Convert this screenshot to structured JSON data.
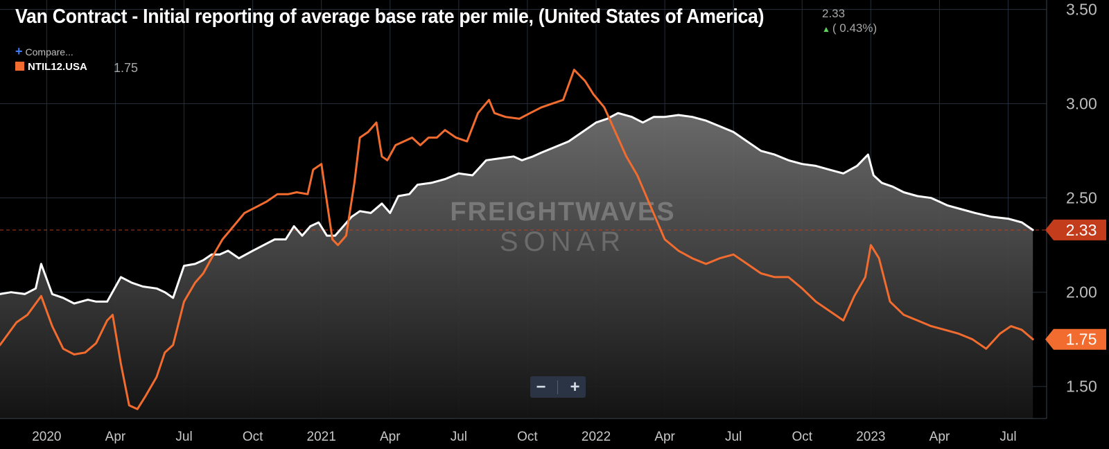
{
  "header": {
    "title": "Van Contract - Initial reporting of average base rate per mile, (United States of America)",
    "current_value": "2.33",
    "change": "( 0.43%)",
    "change_direction_icon": "arrow-up-icon"
  },
  "compare_label": "Compare...",
  "legend": {
    "symbol": "NTIL12.USA",
    "value": "1.75",
    "color": "#f26c2f"
  },
  "zoom": {
    "minus": "−",
    "plus": "+"
  },
  "colors": {
    "primary_line": "#ffffff",
    "secondary_line": "#f26c2f",
    "last_badge": "#c33c1c",
    "secondary_badge": "#f26c2f"
  },
  "chart_data": {
    "type": "line",
    "title": "Van Contract - Initial reporting of average base rate per mile, (United States of America)",
    "xlabel": "",
    "ylabel": "",
    "ylim": [
      1.33,
      3.55
    ],
    "xlim": [
      2019.83,
      2023.64
    ],
    "x_ticks": [
      {
        "x": 2020.0,
        "label": "2020"
      },
      {
        "x": 2020.25,
        "label": "Apr"
      },
      {
        "x": 2020.5,
        "label": "Jul"
      },
      {
        "x": 2020.75,
        "label": "Oct"
      },
      {
        "x": 2021.0,
        "label": "2021"
      },
      {
        "x": 2021.25,
        "label": "Apr"
      },
      {
        "x": 2021.5,
        "label": "Jul"
      },
      {
        "x": 2021.75,
        "label": "Oct"
      },
      {
        "x": 2022.0,
        "label": "2022"
      },
      {
        "x": 2022.25,
        "label": "Apr"
      },
      {
        "x": 2022.5,
        "label": "Jul"
      },
      {
        "x": 2022.75,
        "label": "Oct"
      },
      {
        "x": 2023.0,
        "label": "2023"
      },
      {
        "x": 2023.25,
        "label": "Apr"
      },
      {
        "x": 2023.5,
        "label": "Jul"
      }
    ],
    "y_ticks": [
      "1.50",
      "2.00",
      "2.50",
      "3.00",
      "3.50"
    ],
    "grid": true,
    "reference_line": 2.33,
    "series": [
      {
        "name": "Van Contract initial report (USA)",
        "color": "#ffffff",
        "area_fill": true,
        "last_label": "2.33",
        "x": [
          2019.83,
          2019.87,
          2019.92,
          2019.96,
          2019.98,
          2020.02,
          2020.06,
          2020.1,
          2020.15,
          2020.18,
          2020.22,
          2020.27,
          2020.31,
          2020.35,
          2020.4,
          2020.43,
          2020.46,
          2020.5,
          2020.54,
          2020.57,
          2020.6,
          2020.63,
          2020.66,
          2020.7,
          2020.75,
          2020.79,
          2020.83,
          2020.87,
          2020.9,
          2020.93,
          2020.96,
          2020.99,
          2021.02,
          2021.05,
          2021.08,
          2021.11,
          2021.14,
          2021.18,
          2021.22,
          2021.25,
          2021.28,
          2021.32,
          2021.35,
          2021.4,
          2021.45,
          2021.5,
          2021.55,
          2021.6,
          2021.65,
          2021.7,
          2021.73,
          2021.77,
          2021.8,
          2021.85,
          2021.9,
          2021.95,
          2022.0,
          2022.04,
          2022.08,
          2022.13,
          2022.17,
          2022.21,
          2022.25,
          2022.3,
          2022.35,
          2022.4,
          2022.45,
          2022.5,
          2022.55,
          2022.6,
          2022.65,
          2022.7,
          2022.75,
          2022.8,
          2022.85,
          2022.9,
          2022.95,
          2022.99,
          2023.01,
          2023.04,
          2023.08,
          2023.12,
          2023.17,
          2023.22,
          2023.25,
          2023.28,
          2023.33,
          2023.38,
          2023.44,
          2023.5,
          2023.55,
          2023.57,
          2023.59
        ],
        "values": [
          1.99,
          2.0,
          1.99,
          2.02,
          2.15,
          1.99,
          1.97,
          1.94,
          1.96,
          1.95,
          1.95,
          2.08,
          2.05,
          2.03,
          2.02,
          2.0,
          1.97,
          2.14,
          2.15,
          2.17,
          2.2,
          2.2,
          2.22,
          2.18,
          2.22,
          2.25,
          2.28,
          2.28,
          2.35,
          2.3,
          2.35,
          2.37,
          2.3,
          2.3,
          2.35,
          2.4,
          2.43,
          2.42,
          2.47,
          2.42,
          2.51,
          2.52,
          2.57,
          2.58,
          2.6,
          2.63,
          2.62,
          2.7,
          2.71,
          2.72,
          2.7,
          2.72,
          2.74,
          2.77,
          2.8,
          2.85,
          2.9,
          2.92,
          2.95,
          2.93,
          2.9,
          2.93,
          2.93,
          2.94,
          2.93,
          2.91,
          2.88,
          2.85,
          2.8,
          2.75,
          2.73,
          2.7,
          2.68,
          2.67,
          2.65,
          2.63,
          2.67,
          2.73,
          2.62,
          2.58,
          2.56,
          2.53,
          2.51,
          2.5,
          2.48,
          2.46,
          2.44,
          2.42,
          2.4,
          2.39,
          2.37,
          2.35,
          2.33
        ]
      },
      {
        "name": "NTIL12.USA",
        "color": "#f26c2f",
        "area_fill": false,
        "last_label": "1.75",
        "x": [
          2019.83,
          2019.86,
          2019.89,
          2019.93,
          2019.98,
          2020.02,
          2020.06,
          2020.1,
          2020.14,
          2020.18,
          2020.22,
          2020.24,
          2020.27,
          2020.3,
          2020.33,
          2020.36,
          2020.4,
          2020.43,
          2020.46,
          2020.5,
          2020.54,
          2020.57,
          2020.6,
          2020.64,
          2020.68,
          2020.72,
          2020.76,
          2020.8,
          2020.84,
          2020.88,
          2020.91,
          2020.95,
          2020.97,
          2021.0,
          2021.02,
          2021.04,
          2021.06,
          2021.09,
          2021.12,
          2021.14,
          2021.17,
          2021.2,
          2021.22,
          2021.24,
          2021.27,
          2021.3,
          2021.33,
          2021.36,
          2021.39,
          2021.42,
          2021.45,
          2021.49,
          2021.53,
          2021.57,
          2021.61,
          2021.63,
          2021.67,
          2021.72,
          2021.76,
          2021.8,
          2021.84,
          2021.88,
          2021.92,
          2021.96,
          2021.99,
          2022.03,
          2022.07,
          2022.11,
          2022.15,
          2022.2,
          2022.25,
          2022.3,
          2022.35,
          2022.4,
          2022.45,
          2022.5,
          2022.55,
          2022.6,
          2022.65,
          2022.7,
          2022.75,
          2022.8,
          2022.85,
          2022.9,
          2022.94,
          2022.98,
          2023.0,
          2023.03,
          2023.07,
          2023.12,
          2023.17,
          2023.22,
          2023.27,
          2023.32,
          2023.37,
          2023.42,
          2023.47,
          2023.51,
          2023.55,
          2023.59
        ],
        "values": [
          1.72,
          1.78,
          1.84,
          1.88,
          1.98,
          1.82,
          1.7,
          1.67,
          1.68,
          1.73,
          1.85,
          1.88,
          1.62,
          1.4,
          1.38,
          1.45,
          1.55,
          1.68,
          1.72,
          1.95,
          2.05,
          2.1,
          2.18,
          2.28,
          2.35,
          2.42,
          2.45,
          2.48,
          2.52,
          2.52,
          2.53,
          2.52,
          2.65,
          2.68,
          2.48,
          2.28,
          2.25,
          2.3,
          2.58,
          2.82,
          2.85,
          2.9,
          2.72,
          2.7,
          2.78,
          2.8,
          2.82,
          2.78,
          2.82,
          2.82,
          2.86,
          2.82,
          2.8,
          2.95,
          3.02,
          2.95,
          2.93,
          2.92,
          2.95,
          2.98,
          3.0,
          3.02,
          3.18,
          3.12,
          3.05,
          2.98,
          2.85,
          2.72,
          2.62,
          2.45,
          2.28,
          2.22,
          2.18,
          2.15,
          2.18,
          2.2,
          2.15,
          2.1,
          2.08,
          2.08,
          2.02,
          1.95,
          1.9,
          1.85,
          1.98,
          2.08,
          2.25,
          2.18,
          1.95,
          1.88,
          1.85,
          1.82,
          1.8,
          1.78,
          1.75,
          1.7,
          1.78,
          1.82,
          1.8,
          1.75
        ]
      }
    ]
  }
}
